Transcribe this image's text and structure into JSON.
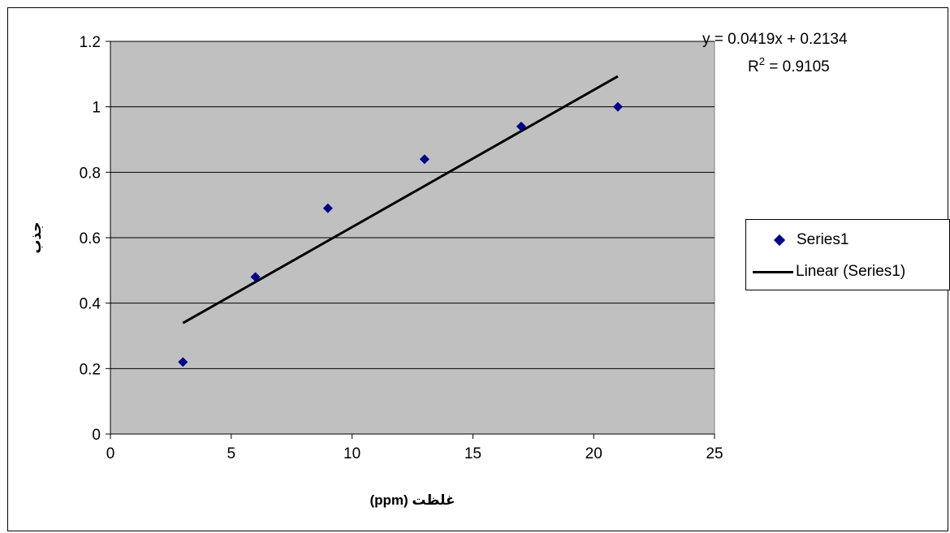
{
  "chart_data": {
    "type": "scatter",
    "title": "",
    "xlabel": "غلظت (ppm)",
    "ylabel": "جذب",
    "xlim": [
      0,
      25
    ],
    "ylim": [
      0,
      1.2
    ],
    "xticks": [
      "0",
      "5",
      "10",
      "15",
      "20",
      "25"
    ],
    "yticks": [
      "0",
      "0.2",
      "0.4",
      "0.6",
      "0.8",
      "1",
      "1.2"
    ],
    "grid": "horizontal",
    "background": "#c0c0c0",
    "series": [
      {
        "name": "Series1",
        "kind": "scatter",
        "marker": "diamond",
        "color": "#00008b",
        "x": [
          3,
          6,
          9,
          13,
          17,
          21
        ],
        "y": [
          0.22,
          0.48,
          0.69,
          0.84,
          0.94,
          1.0
        ]
      },
      {
        "name": "Linear (Series1)",
        "kind": "trendline",
        "color": "#000000",
        "slope": 0.0419,
        "intercept": 0.2134,
        "x_range": [
          3,
          21
        ]
      }
    ],
    "equation_text": "y = 0.0419x + 0.2134",
    "r2_label": "R",
    "r2_superscript": "2",
    "r2_value": " = 0.9105",
    "legend": {
      "position": "right",
      "entries": [
        "Series1",
        "Linear (Series1)"
      ]
    }
  }
}
